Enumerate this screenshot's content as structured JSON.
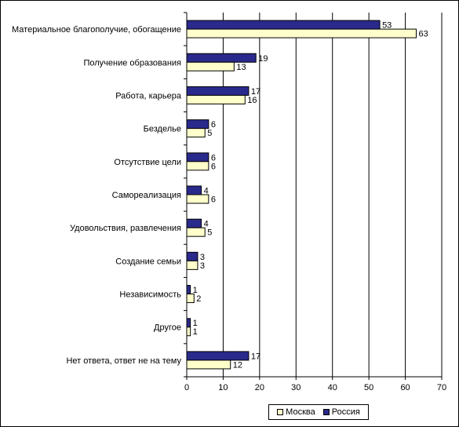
{
  "chart_data": {
    "type": "bar",
    "orientation": "horizontal",
    "categories": [
      "Материальное благополучие, обогащение",
      "Получение образования",
      "Работа, карьера",
      "Безделье",
      "Отсутствие цели",
      "Самореализация",
      "Удовольствия, развлечения",
      "Создание семьи",
      "Независимость",
      "Другое",
      "Нет ответа, ответ не на тему"
    ],
    "series": [
      {
        "name": "Россия",
        "color": "#2a2a8c",
        "values": [
          53,
          19,
          17,
          6,
          6,
          4,
          4,
          3,
          1,
          1,
          17
        ]
      },
      {
        "name": "Москва",
        "color": "#ffffcc",
        "values": [
          63,
          13,
          16,
          5,
          6,
          6,
          5,
          3,
          2,
          1,
          12
        ]
      }
    ],
    "legend_order": [
      "Москва",
      "Россия"
    ],
    "xlim": [
      0,
      70
    ],
    "xticks": [
      0,
      10,
      20,
      30,
      40,
      50,
      60,
      70
    ],
    "grid": "vertical",
    "legend_position": "bottom-right",
    "title": "",
    "xlabel": "",
    "ylabel": ""
  }
}
